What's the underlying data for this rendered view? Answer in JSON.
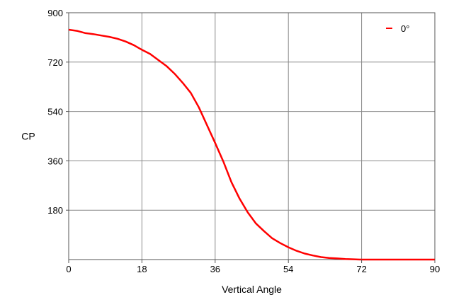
{
  "chart_data": {
    "type": "line",
    "title": "",
    "xlabel": "Vertical Angle",
    "ylabel": "CP",
    "xlim": [
      0,
      90
    ],
    "ylim": [
      0,
      900
    ],
    "x_ticks": [
      0,
      18,
      36,
      54,
      72,
      90
    ],
    "y_ticks": [
      180,
      360,
      540,
      720,
      900
    ],
    "grid": true,
    "legend_position": "top-right",
    "series": [
      {
        "name": "0°",
        "color": "#ff0000",
        "x": [
          0,
          2,
          4,
          6,
          8,
          10,
          12,
          14,
          16,
          18,
          20,
          22,
          24,
          26,
          28,
          30,
          32,
          34,
          36,
          38,
          40,
          42,
          44,
          46,
          48,
          50,
          52,
          54,
          56,
          58,
          60,
          62,
          64,
          66,
          68,
          70,
          72,
          74,
          76,
          78,
          80,
          82,
          84,
          86,
          88,
          90
        ],
        "y": [
          838,
          834,
          826,
          822,
          817,
          812,
          805,
          795,
          782,
          765,
          750,
          728,
          706,
          678,
          645,
          608,
          555,
          490,
          425,
          358,
          282,
          222,
          172,
          132,
          104,
          78,
          60,
          45,
          32,
          22,
          15,
          9,
          6,
          4,
          2,
          1,
          0,
          0,
          0,
          0,
          0,
          0,
          0,
          0,
          0,
          0
        ]
      }
    ]
  }
}
